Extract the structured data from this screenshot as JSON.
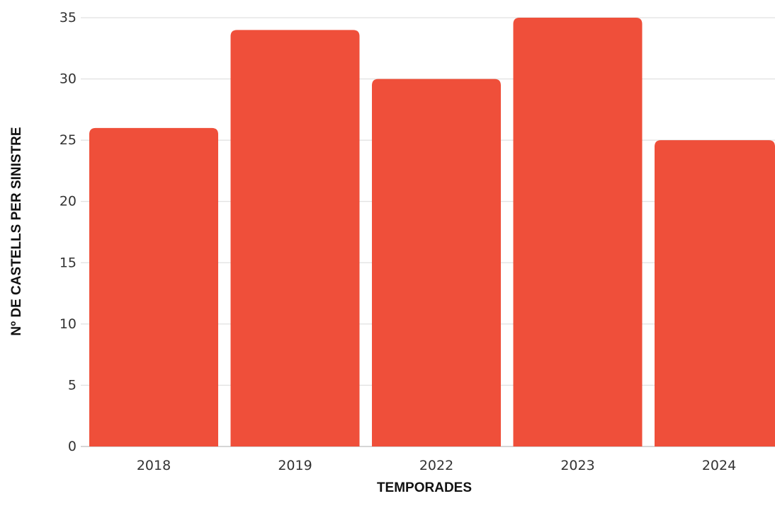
{
  "chart_data": {
    "type": "bar",
    "title": "",
    "xlabel": "TEMPORADES",
    "ylabel": "Nº DE CASTELLS PER SINISTRE",
    "categories": [
      "2018",
      "2019",
      "2022",
      "2023",
      "2024"
    ],
    "values": [
      26,
      34,
      30,
      35,
      25
    ],
    "ylim": [
      0,
      35
    ],
    "yticks": [
      0,
      5,
      10,
      15,
      20,
      25,
      30,
      35
    ],
    "grid": true,
    "legend": "none",
    "bar_color": "#ef4f3a"
  }
}
